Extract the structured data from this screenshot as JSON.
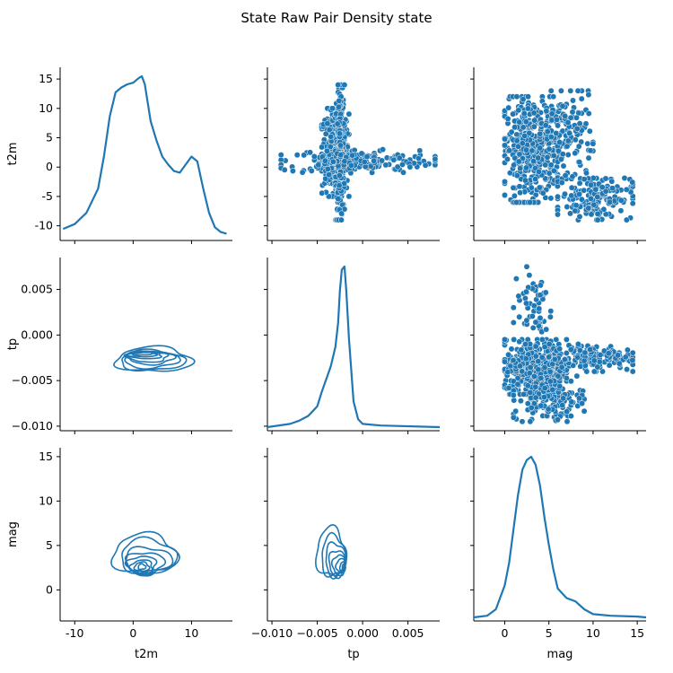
{
  "figure": {
    "title": "State Raw Pair Density state",
    "colors": {
      "series": "#1f77b4",
      "point_edge": "#ffffff"
    }
  },
  "chart_data": {
    "type": "pairplot",
    "variables": [
      "t2m",
      "tp",
      "mag"
    ],
    "diag_kind": "kde",
    "upper": "scatter",
    "lower": "kde-contour",
    "axes": {
      "t2m": {
        "label": "t2m",
        "lim": [
          -12.5,
          17
        ],
        "ticks": [
          -10,
          0,
          10
        ],
        "ticks_y": [
          -10,
          -5,
          0,
          5,
          10,
          15
        ]
      },
      "tp": {
        "label": "tp",
        "lim": [
          -0.0105,
          0.0085
        ],
        "ticks": [
          -0.01,
          -0.005,
          0.0,
          0.005
        ],
        "tick_labels": [
          "−0.010",
          "−0.005",
          "0.000",
          "0.005"
        ],
        "ticks_y": [
          -0.01,
          -0.005,
          0.0,
          0.005
        ],
        "tick_labels_y": [
          "−0.010",
          "−0.005",
          "0.000",
          "0.005"
        ]
      },
      "mag": {
        "label": "mag",
        "lim": [
          -3.5,
          16
        ],
        "ticks": [
          0,
          5,
          10,
          15
        ],
        "ticks_y": [
          0,
          5,
          10,
          15
        ]
      }
    },
    "diag_density": {
      "t2m": {
        "x": [
          -12,
          -10,
          -8,
          -6,
          -5,
          -4,
          -3,
          -2,
          -1,
          0,
          1,
          1.5,
          2,
          3,
          4,
          5,
          6,
          7,
          8,
          9,
          10,
          11,
          12,
          13,
          14,
          15,
          16
        ],
        "y": [
          0.05,
          0.08,
          0.15,
          0.3,
          0.5,
          0.75,
          0.9,
          0.93,
          0.95,
          0.96,
          0.99,
          1.0,
          0.95,
          0.72,
          0.6,
          0.5,
          0.45,
          0.41,
          0.4,
          0.45,
          0.5,
          0.47,
          0.3,
          0.15,
          0.06,
          0.03,
          0.02
        ]
      },
      "tp": {
        "x": [
          -0.0105,
          -0.008,
          -0.007,
          -0.006,
          -0.005,
          -0.0045,
          -0.004,
          -0.0035,
          -0.003,
          -0.0027,
          -0.0025,
          -0.0023,
          -0.002,
          -0.0018,
          -0.0015,
          -0.001,
          -0.0005,
          0,
          0.002,
          0.0085
        ],
        "y": [
          0.0,
          0.02,
          0.04,
          0.07,
          0.13,
          0.22,
          0.3,
          0.38,
          0.5,
          0.65,
          0.85,
          0.98,
          1.0,
          0.85,
          0.55,
          0.16,
          0.05,
          0.02,
          0.01,
          0.0
        ]
      },
      "mag": {
        "x": [
          -3.5,
          -2,
          -1,
          0,
          0.5,
          1,
          1.5,
          2,
          2.5,
          3,
          3.5,
          4,
          4.5,
          5,
          5.5,
          6,
          7,
          8,
          9,
          10,
          12,
          15,
          16
        ],
        "y": [
          0.0,
          0.01,
          0.05,
          0.2,
          0.34,
          0.55,
          0.76,
          0.92,
          0.98,
          1.0,
          0.95,
          0.82,
          0.62,
          0.45,
          0.3,
          0.18,
          0.12,
          0.1,
          0.05,
          0.02,
          0.01,
          0.005,
          0.0
        ]
      }
    },
    "scatter": {
      "tp_vs_t2m": {
        "x_var": "tp",
        "y_var": "t2m",
        "clusters": [
          {
            "x": [
              -0.0045,
              -0.0015
            ],
            "y": [
              -5,
              10
            ],
            "n": 380
          },
          {
            "x": [
              -0.003,
              -0.002
            ],
            "y": [
              -9,
              14
            ],
            "n": 240
          },
          {
            "x": [
              -0.009,
              0.008
            ],
            "y": [
              -1,
              3
            ],
            "n": 160
          }
        ]
      },
      "mag_vs_t2m": {
        "x_var": "mag",
        "y_var": "t2m",
        "clusters": [
          {
            "x": [
              0,
              6
            ],
            "y": [
              -6,
              12
            ],
            "n": 420
          },
          {
            "x": [
              4,
              10
            ],
            "y": [
              -2,
              13
            ],
            "n": 140
          },
          {
            "x": [
              6,
              14.5
            ],
            "y": [
              -9,
              -1
            ],
            "n": 160
          }
        ]
      },
      "mag_vs_tp": {
        "x_var": "mag",
        "y_var": "tp",
        "clusters": [
          {
            "x": [
              0,
              7
            ],
            "y": [
              -0.0065,
              -0.0005
            ],
            "n": 420
          },
          {
            "x": [
              1,
              9
            ],
            "y": [
              -0.0095,
              -0.0045
            ],
            "n": 150
          },
          {
            "x": [
              5,
              14.5
            ],
            "y": [
              -0.004,
              -0.001
            ],
            "n": 140
          },
          {
            "x": [
              1,
              5.5
            ],
            "y": [
              -0.001,
              0.0075
            ],
            "n": 60
          }
        ]
      }
    },
    "contours": {
      "t2m_vs_tp": {
        "x_var": "t2m",
        "y_var": "tp",
        "center": [
          3,
          -0.0025
        ],
        "levels": [
          {
            "rx": 13,
            "ry": 0.0027,
            "cx": 3.5,
            "cy": -0.0027
          },
          {
            "rx": 11,
            "ry": 0.0022,
            "cx": 3.2,
            "cy": -0.0028
          },
          {
            "rx": 9.5,
            "ry": 0.0018,
            "cx": 3,
            "cy": -0.0027
          },
          {
            "rx": 8,
            "ry": 0.0014,
            "cx": 3,
            "cy": -0.0025
          },
          {
            "rx": 7,
            "ry": 0.0011,
            "cx": 2.5,
            "cy": -0.0024
          },
          {
            "rx": 6,
            "ry": 0.0008,
            "cx": 2,
            "cy": -0.0022
          },
          {
            "rx": 5,
            "ry": 0.0006,
            "cx": 1.5,
            "cy": -0.0021
          },
          {
            "rx": 3.5,
            "ry": 0.0004,
            "cx": 1.5,
            "cy": -0.002
          }
        ]
      },
      "t2m_vs_mag": {
        "x_var": "t2m",
        "y_var": "mag",
        "levels": [
          {
            "rx": 11,
            "ry": 4.5,
            "cx": 2,
            "cy": 4
          },
          {
            "rx": 9.5,
            "ry": 3.8,
            "cx": 2.5,
            "cy": 3.8
          },
          {
            "rx": 8,
            "ry": 3.0,
            "cx": 2.5,
            "cy": 3.3
          },
          {
            "rx": 6.5,
            "ry": 2.5,
            "cx": 2,
            "cy": 3.0
          },
          {
            "rx": 5,
            "ry": 2.0,
            "cx": 1.5,
            "cy": 2.8
          },
          {
            "rx": 3.8,
            "ry": 1.5,
            "cx": 1.5,
            "cy": 2.6
          },
          {
            "rx": 2.5,
            "ry": 1.0,
            "cx": 1.5,
            "cy": 2.6
          },
          {
            "rx": 1.3,
            "ry": 0.6,
            "cx": 1.5,
            "cy": 2.6
          }
        ]
      },
      "tp_vs_mag": {
        "x_var": "tp",
        "y_var": "mag",
        "levels": [
          {
            "rx": 0.0032,
            "ry": 5.5,
            "cx": -0.0035,
            "cy": 4.2
          },
          {
            "rx": 0.0027,
            "ry": 4.6,
            "cx": -0.0032,
            "cy": 3.8
          },
          {
            "rx": 0.0022,
            "ry": 3.8,
            "cx": -0.003,
            "cy": 3.4
          },
          {
            "rx": 0.0018,
            "ry": 3.0,
            "cx": -0.0028,
            "cy": 3.0
          },
          {
            "rx": 0.0014,
            "ry": 2.3,
            "cx": -0.0026,
            "cy": 2.8
          },
          {
            "rx": 0.001,
            "ry": 1.6,
            "cx": -0.0024,
            "cy": 2.7
          },
          {
            "rx": 0.0006,
            "ry": 1.0,
            "cx": -0.0022,
            "cy": 2.6
          },
          {
            "rx": 0.0003,
            "ry": 0.5,
            "cx": -0.0021,
            "cy": 2.6
          }
        ]
      }
    }
  }
}
